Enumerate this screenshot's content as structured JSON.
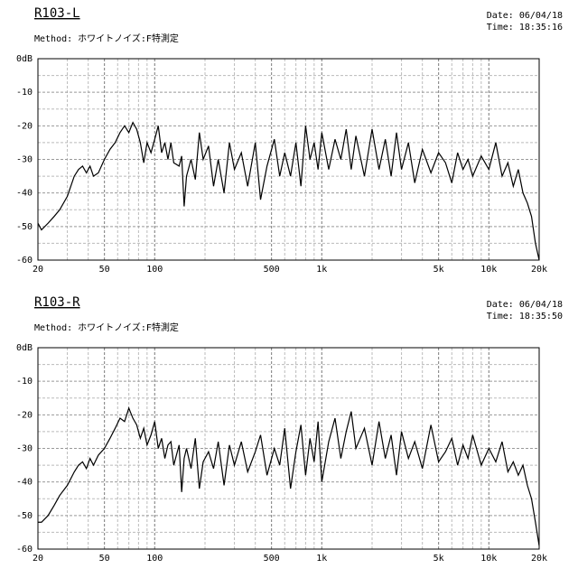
{
  "chart_data": [
    {
      "type": "line",
      "title": "R103-L",
      "subtitle": "Method: ホワイトノイズ:F特測定",
      "date": "Date: 06/04/18",
      "time": "Time: 18:35:16",
      "log_x": true,
      "grid": true,
      "color": "#000000",
      "xlim": [
        20,
        20000
      ],
      "ylim": [
        -60,
        0
      ],
      "xticks": [
        20,
        50,
        100,
        500,
        {
          "value": 1000,
          "label": "1k"
        },
        {
          "value": 5000,
          "label": "5k"
        },
        {
          "value": 10000,
          "label": "10k"
        },
        {
          "value": 20000,
          "label": "20k"
        }
      ],
      "yticks": [
        {
          "value": 0,
          "label": "0dB"
        },
        -10,
        -20,
        -30,
        -40,
        -50,
        -60
      ],
      "x": [
        20,
        21,
        23,
        25,
        27,
        30,
        33,
        35,
        37,
        39,
        41,
        43,
        46,
        50,
        54,
        58,
        62,
        66,
        70,
        74,
        78,
        82,
        86,
        90,
        95,
        100,
        105,
        110,
        115,
        120,
        125,
        130,
        140,
        145,
        150,
        155,
        165,
        175,
        185,
        195,
        210,
        225,
        240,
        260,
        280,
        300,
        330,
        360,
        400,
        430,
        470,
        520,
        560,
        600,
        650,
        700,
        750,
        800,
        850,
        900,
        950,
        1000,
        1100,
        1200,
        1300,
        1400,
        1500,
        1600,
        1800,
        2000,
        2200,
        2400,
        2600,
        2800,
        3000,
        3300,
        3600,
        4000,
        4500,
        5000,
        5500,
        6000,
        6500,
        7000,
        7500,
        8000,
        9000,
        10000,
        11000,
        12000,
        13000,
        14000,
        15000,
        16000,
        17000,
        18000,
        19000,
        20000
      ],
      "values": [
        -49,
        -51,
        -49,
        -47,
        -45,
        -41,
        -35,
        -33,
        -32,
        -34,
        -32,
        -35,
        -34,
        -30,
        -27,
        -25,
        -22,
        -20,
        -22,
        -19,
        -21,
        -25,
        -31,
        -25,
        -28,
        -24,
        -20,
        -28,
        -25,
        -30,
        -25,
        -31,
        -32,
        -29,
        -44,
        -35,
        -30,
        -36,
        -22,
        -30,
        -26,
        -38,
        -30,
        -40,
        -25,
        -33,
        -28,
        -38,
        -25,
        -42,
        -32,
        -24,
        -35,
        -28,
        -35,
        -25,
        -38,
        -20,
        -30,
        -25,
        -33,
        -22,
        -33,
        -24,
        -30,
        -21,
        -33,
        -23,
        -35,
        -21,
        -33,
        -24,
        -35,
        -22,
        -33,
        -25,
        -37,
        -27,
        -34,
        -28,
        -31,
        -37,
        -28,
        -33,
        -30,
        -35,
        -29,
        -33,
        -25,
        -35,
        -31,
        -38,
        -33,
        -40,
        -43,
        -47,
        -55,
        -60
      ]
    },
    {
      "type": "line",
      "title": "R103-R",
      "subtitle": "Method: ホワイトノイズ:F特測定",
      "date": "Date: 06/04/18",
      "time": "Time: 18:35:50",
      "log_x": true,
      "grid": true,
      "color": "#000000",
      "xlim": [
        20,
        20000
      ],
      "ylim": [
        -60,
        0
      ],
      "xticks": [
        20,
        50,
        100,
        500,
        {
          "value": 1000,
          "label": "1k"
        },
        {
          "value": 5000,
          "label": "5k"
        },
        {
          "value": 10000,
          "label": "10k"
        },
        {
          "value": 20000,
          "label": "20k"
        }
      ],
      "yticks": [
        {
          "value": 0,
          "label": "0dB"
        },
        -10,
        -20,
        -30,
        -40,
        -50,
        -60
      ],
      "x": [
        20,
        21,
        23,
        25,
        27,
        30,
        33,
        35,
        37,
        39,
        41,
        43,
        46,
        50,
        54,
        58,
        62,
        66,
        70,
        74,
        78,
        82,
        86,
        90,
        95,
        100,
        105,
        110,
        115,
        120,
        125,
        130,
        140,
        145,
        150,
        155,
        165,
        175,
        185,
        195,
        210,
        225,
        240,
        260,
        280,
        300,
        330,
        360,
        400,
        430,
        470,
        520,
        560,
        600,
        650,
        700,
        750,
        800,
        850,
        900,
        950,
        1000,
        1100,
        1200,
        1300,
        1400,
        1500,
        1600,
        1800,
        2000,
        2200,
        2400,
        2600,
        2800,
        3000,
        3300,
        3600,
        4000,
        4500,
        5000,
        5500,
        6000,
        6500,
        7000,
        7500,
        8000,
        9000,
        10000,
        11000,
        12000,
        13000,
        14000,
        15000,
        16000,
        17000,
        18000,
        19000,
        20000
      ],
      "values": [
        -52,
        -52,
        -50,
        -47,
        -44,
        -41,
        -37,
        -35,
        -34,
        -36,
        -33,
        -35,
        -32,
        -30,
        -27,
        -24,
        -21,
        -22,
        -18,
        -21,
        -23,
        -27,
        -24,
        -29,
        -26,
        -22,
        -30,
        -27,
        -33,
        -29,
        -28,
        -35,
        -29,
        -43,
        -33,
        -30,
        -36,
        -27,
        -42,
        -34,
        -31,
        -36,
        -28,
        -41,
        -29,
        -35,
        -28,
        -37,
        -31,
        -26,
        -38,
        -30,
        -35,
        -24,
        -42,
        -31,
        -23,
        -38,
        -27,
        -34,
        -22,
        -40,
        -28,
        -21,
        -33,
        -25,
        -19,
        -30,
        -24,
        -35,
        -22,
        -33,
        -26,
        -38,
        -25,
        -33,
        -28,
        -36,
        -23,
        -34,
        -31,
        -27,
        -35,
        -29,
        -33,
        -26,
        -35,
        -30,
        -34,
        -28,
        -37,
        -34,
        -38,
        -35,
        -41,
        -45,
        -52,
        -59
      ]
    }
  ]
}
